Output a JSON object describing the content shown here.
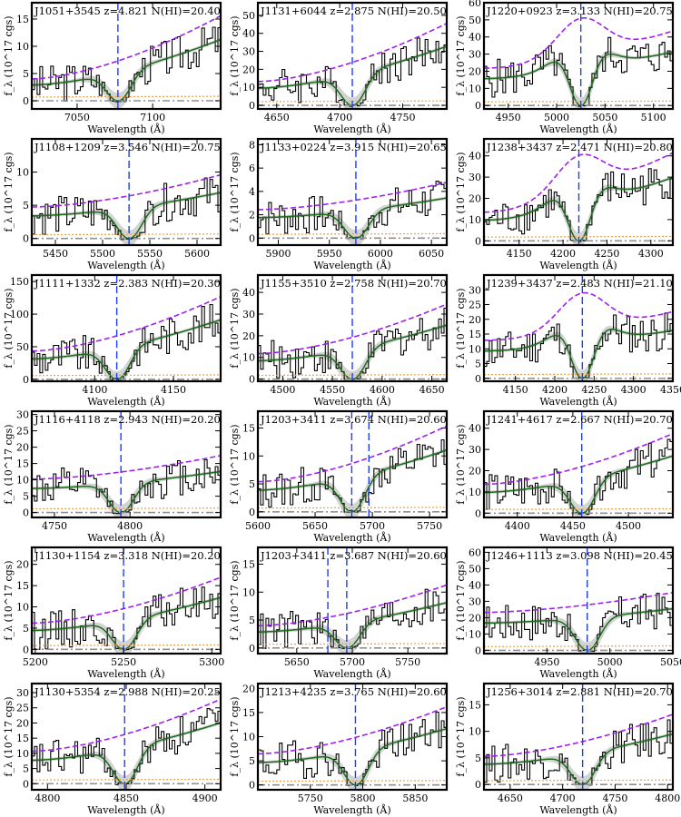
{
  "colors": {
    "data": "#000000",
    "fit": "#1a6e1a",
    "band": "#c8c8c8",
    "continuum": "#a020f0",
    "error": "#f0a040",
    "zero": "#909090",
    "center": "#1e3cff"
  },
  "axis_text": {
    "xlabel": "Wavelength (Å)",
    "ylabel": "f_λ (10^17 cgs)"
  },
  "chart_data": [
    {
      "type": "line",
      "title": "J1051+3545 z=4.821 N(HI)=20.40",
      "xlim": [
        7020,
        7145
      ],
      "ylim": [
        -1.5,
        18
      ],
      "xticks": [
        7050,
        7100
      ],
      "yticks": [
        0,
        5,
        10,
        15
      ],
      "center": 7077,
      "xlabel": "Wavelength (Å)",
      "ylabel": "f_λ (10^17 cgs)"
    },
    {
      "type": "line",
      "title": "J1131+6044 z=2.875 N(HI)=20.50",
      "xlim": [
        4635,
        4785
      ],
      "ylim": [
        -2,
        57
      ],
      "xticks": [
        4650,
        4700,
        4750
      ],
      "yticks": [
        0,
        10,
        20,
        30,
        40,
        50
      ],
      "center": 4710,
      "xlabel": "Wavelength (Å)",
      "ylabel": "f_λ (10^17 cgs)"
    },
    {
      "type": "line",
      "title": "J1220+0923 z=3.133 N(HI)=20.75",
      "xlim": [
        4925,
        5120
      ],
      "ylim": [
        -2,
        60
      ],
      "xticks": [
        4950,
        5000,
        5050,
        5100
      ],
      "yticks": [
        0,
        10,
        20,
        30,
        40,
        50,
        60
      ],
      "center": 5025,
      "xlabel": "Wavelength (Å)",
      "ylabel": "f_λ (10^17 cgs)"
    },
    {
      "type": "line",
      "title": "J1108+1209 z=3.546 N(HI)=20.75",
      "xlim": [
        5425,
        5625
      ],
      "ylim": [
        -1,
        15
      ],
      "xticks": [
        5450,
        5500,
        5550,
        5600
      ],
      "yticks": [
        0,
        5,
        10
      ],
      "center": 5528,
      "xlabel": "Wavelength (Å)",
      "ylabel": "f_λ (10^17 cgs)"
    },
    {
      "type": "line",
      "title": "J1133+0224 z=3.915 N(HI)=20.65",
      "xlim": [
        5880,
        6065
      ],
      "ylim": [
        -0.6,
        8.5
      ],
      "xticks": [
        5900,
        5950,
        6000,
        6050
      ],
      "yticks": [
        0,
        2,
        4,
        6,
        8
      ],
      "center": 5976,
      "xlabel": "Wavelength (Å)",
      "ylabel": "f_λ (10^17 cgs)"
    },
    {
      "type": "line",
      "title": "J1238+3437 z=2.471 N(HI)=20.80",
      "xlim": [
        4110,
        4325
      ],
      "ylim": [
        -2,
        48
      ],
      "xticks": [
        4150,
        4200,
        4250,
        4300
      ],
      "yticks": [
        0,
        10,
        20,
        30,
        40
      ],
      "center": 4218,
      "xlabel": "Wavelength (Å)",
      "ylabel": "f_λ (10^17 cgs)"
    },
    {
      "type": "line",
      "title": "J1111+1332 z=2.383 N(HI)=20.30",
      "xlim": [
        4060,
        4180
      ],
      "ylim": [
        -3,
        160
      ],
      "xticks": [
        4100,
        4150
      ],
      "yticks": [
        0,
        50,
        100,
        150
      ],
      "center": 4114,
      "xlabel": "Wavelength (Å)",
      "ylabel": "f_λ (10^17 cgs)"
    },
    {
      "type": "line",
      "title": "J1155+3510 z=2.758 N(HI)=20.70",
      "xlim": [
        4475,
        4665
      ],
      "ylim": [
        -1,
        48
      ],
      "xticks": [
        4500,
        4550,
        4600,
        4650
      ],
      "yticks": [
        0,
        10,
        20,
        30,
        40
      ],
      "center": 4570,
      "xlabel": "Wavelength (Å)",
      "ylabel": "f_λ (10^17 cgs)"
    },
    {
      "type": "line",
      "title": "J1239+3437 z=2.483 N(HI)=21.10",
      "xlim": [
        4110,
        4350
      ],
      "ylim": [
        -1,
        35
      ],
      "xticks": [
        4150,
        4200,
        4250,
        4300,
        4350
      ],
      "yticks": [
        0,
        5,
        10,
        15,
        20,
        25,
        30
      ],
      "center": 4235,
      "xlabel": "Wavelength (Å)",
      "ylabel": "f_λ (10^17 cgs)"
    },
    {
      "type": "line",
      "title": "J1116+4118 z=2.943 N(HI)=20.20",
      "xlim": [
        4735,
        4860
      ],
      "ylim": [
        -1.5,
        31
      ],
      "xticks": [
        4750,
        4800
      ],
      "yticks": [
        0,
        5,
        10,
        15,
        20,
        25,
        30
      ],
      "center": 4794,
      "xlabel": "Wavelength (Å)",
      "ylabel": "f_λ (10^17 cgs)"
    },
    {
      "type": "line",
      "title": "J1203+3411 z=3.674 N(HI)=20.60",
      "xlim": [
        5600,
        5765
      ],
      "ylim": [
        -1,
        18
      ],
      "xticks": [
        5600,
        5650,
        5700,
        5750
      ],
      "yticks": [
        0,
        5,
        10,
        15
      ],
      "center": 5682,
      "center2": 5697,
      "xlabel": "Wavelength (Å)",
      "ylabel": "f_λ (10^17 cgs)"
    },
    {
      "type": "line",
      "title": "J1241+4617 z=2.667 N(HI)=20.70",
      "xlim": [
        4370,
        4540
      ],
      "ylim": [
        -2,
        48
      ],
      "xticks": [
        4400,
        4450,
        4500
      ],
      "yticks": [
        0,
        10,
        20,
        30,
        40
      ],
      "center": 4458,
      "xlabel": "Wavelength (Å)",
      "ylabel": "f_λ (10^17 cgs)"
    },
    {
      "type": "line",
      "title": "J1130+1154 z=3.318 N(HI)=20.20",
      "xlim": [
        5198,
        5305
      ],
      "ylim": [
        -1,
        24
      ],
      "xticks": [
        5200,
        5250,
        5300
      ],
      "yticks": [
        0,
        5,
        10,
        15,
        20
      ],
      "center": 5250,
      "xlabel": "Wavelength (Å)",
      "ylabel": "f_λ (10^17 cgs)"
    },
    {
      "type": "line",
      "title": "J1203+3411 z=3.687 N(HI)=20.60",
      "xlim": [
        5615,
        5785
      ],
      "ylim": [
        -1,
        18
      ],
      "xticks": [
        5650,
        5700,
        5750
      ],
      "yticks": [
        0,
        5,
        10,
        15
      ],
      "center": 5695,
      "center2": 5678,
      "xlabel": "Wavelength (Å)",
      "ylabel": "f_λ (10^17 cgs)"
    },
    {
      "type": "line",
      "title": "J1246+1113 z=3.098 N(HI)=20.45",
      "xlim": [
        4900,
        5050
      ],
      "ylim": [
        -2,
        63
      ],
      "xticks": [
        4950,
        5000,
        5050
      ],
      "yticks": [
        0,
        10,
        20,
        30,
        40,
        50,
        60
      ],
      "center": 4982,
      "xlabel": "Wavelength (Å)",
      "ylabel": "f_λ (10^17 cgs)"
    },
    {
      "type": "line",
      "title": "J1130+5354 z=2.988 N(HI)=20.25",
      "xlim": [
        4790,
        4910
      ],
      "ylim": [
        -2,
        33
      ],
      "xticks": [
        4800,
        4850,
        4900
      ],
      "yticks": [
        0,
        5,
        10,
        15,
        20,
        25,
        30
      ],
      "center": 4849,
      "xlabel": "Wavelength (Å)",
      "ylabel": "f_λ (10^17 cgs)"
    },
    {
      "type": "line",
      "title": "J1213+4235 z=3.765 N(HI)=20.60",
      "xlim": [
        5700,
        5880
      ],
      "ylim": [
        -1,
        21
      ],
      "xticks": [
        5750,
        5800,
        5850
      ],
      "yticks": [
        0,
        5,
        10,
        15,
        20
      ],
      "center": 5793,
      "xlabel": "Wavelength (Å)",
      "ylabel": "f_λ (10^17 cgs)"
    },
    {
      "type": "line",
      "title": "J1256+3014 z=2.881 N(HI)=20.70",
      "xlim": [
        4625,
        4805
      ],
      "ylim": [
        -1,
        19
      ],
      "xticks": [
        4650,
        4700,
        4750,
        4800
      ],
      "yticks": [
        0,
        5,
        10,
        15
      ],
      "center": 4719,
      "xlabel": "Wavelength (Å)",
      "ylabel": "f_λ (10^17 cgs)"
    }
  ]
}
